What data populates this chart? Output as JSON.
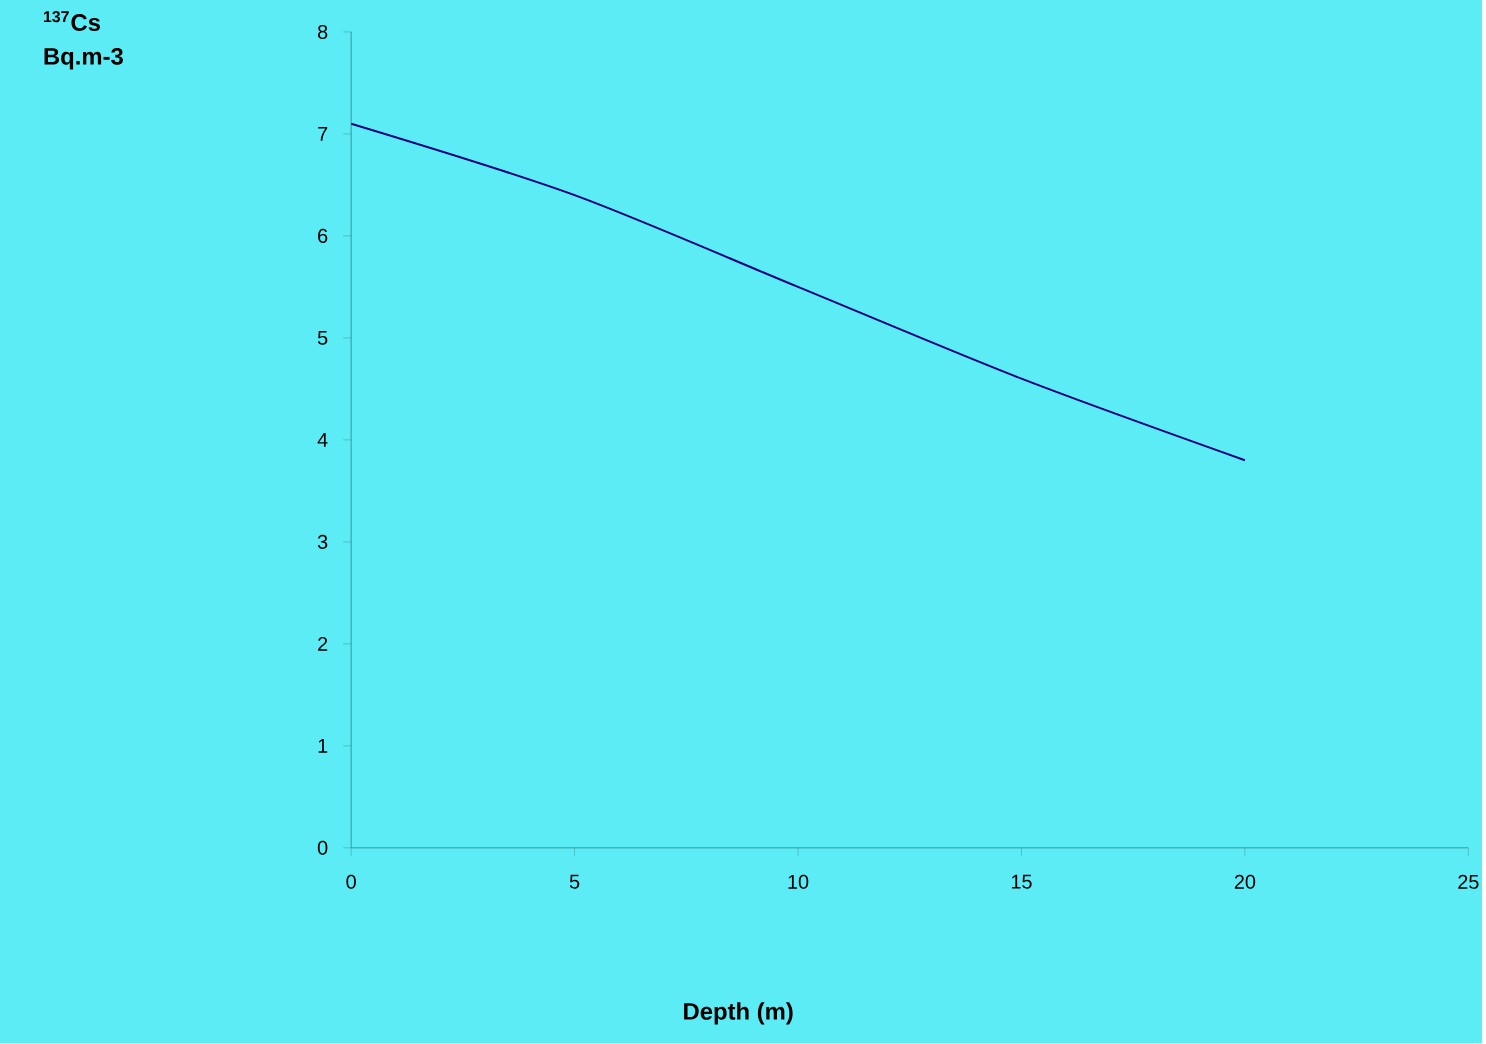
{
  "chart_data": {
    "type": "line",
    "annotations": [
      "$^{137}$Cs Bq.m-3"
    ],
    "xlabel": "Depth (m)",
    "x": [
      0,
      5,
      10,
      15,
      20
    ],
    "series": [
      {
        "color": "#000080",
        "values": [
          7.1,
          6.4,
          5.5,
          4.6,
          3.8
        ]
      }
    ],
    "xlim": [
      0,
      25
    ],
    "xticks": [
      0,
      5,
      10,
      15,
      20,
      25
    ],
    "ylim": [
      0,
      8
    ],
    "yticks": [
      0,
      1,
      2,
      3,
      4,
      5,
      6,
      7,
      8
    ],
    "grid": false,
    "marker": "none",
    "line_style": "solid"
  }
}
